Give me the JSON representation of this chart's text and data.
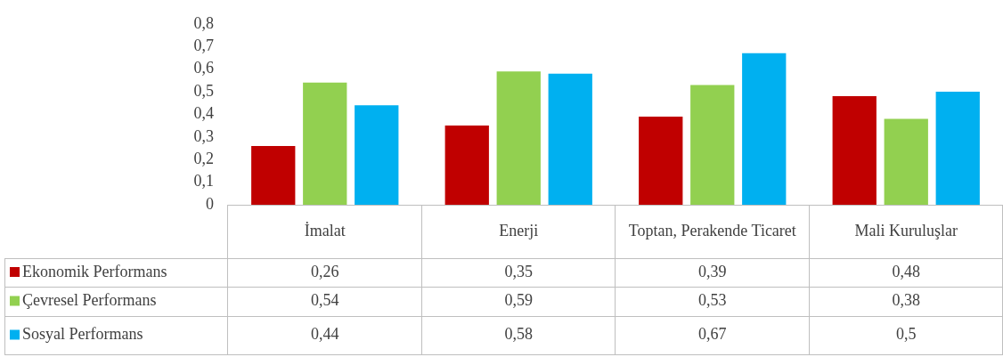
{
  "chart_data": {
    "type": "bar",
    "categories": [
      "İmalat",
      "Enerji",
      "Toptan, Perakende Ticaret",
      "Mali Kuruluşlar"
    ],
    "series": [
      {
        "name": "Ekonomik Performans",
        "color": "#c00000",
        "values": [
          0.26,
          0.35,
          0.39,
          0.48
        ],
        "value_labels": [
          "0,26",
          "0,35",
          "0,39",
          "0,48"
        ]
      },
      {
        "name": "Çevresel Performans",
        "color": "#92d050",
        "values": [
          0.54,
          0.59,
          0.53,
          0.38
        ],
        "value_labels": [
          "0,54",
          "0,59",
          "0,53",
          "0,38"
        ]
      },
      {
        "name": "Sosyal Performans",
        "color": "#00b0f0",
        "values": [
          0.44,
          0.58,
          0.67,
          0.5
        ],
        "value_labels": [
          "0,44",
          "0,58",
          "0,67",
          "0,5"
        ]
      }
    ],
    "ylim": [
      0,
      0.8
    ],
    "yticks": [
      0,
      {
        "value": 0.1,
        "label": "0,1"
      },
      {
        "value": 0.2,
        "label": "0,2"
      },
      {
        "value": 0.3,
        "label": "0,3"
      },
      {
        "value": 0.4,
        "label": "0,4"
      },
      {
        "value": 0.5,
        "label": "0,5"
      },
      {
        "value": 0.6,
        "label": "0,6"
      },
      {
        "value": 0.7,
        "label": "0,7"
      },
      {
        "value": 0.8,
        "label": "0,8"
      }
    ],
    "grid": false,
    "legend": "bottom"
  }
}
